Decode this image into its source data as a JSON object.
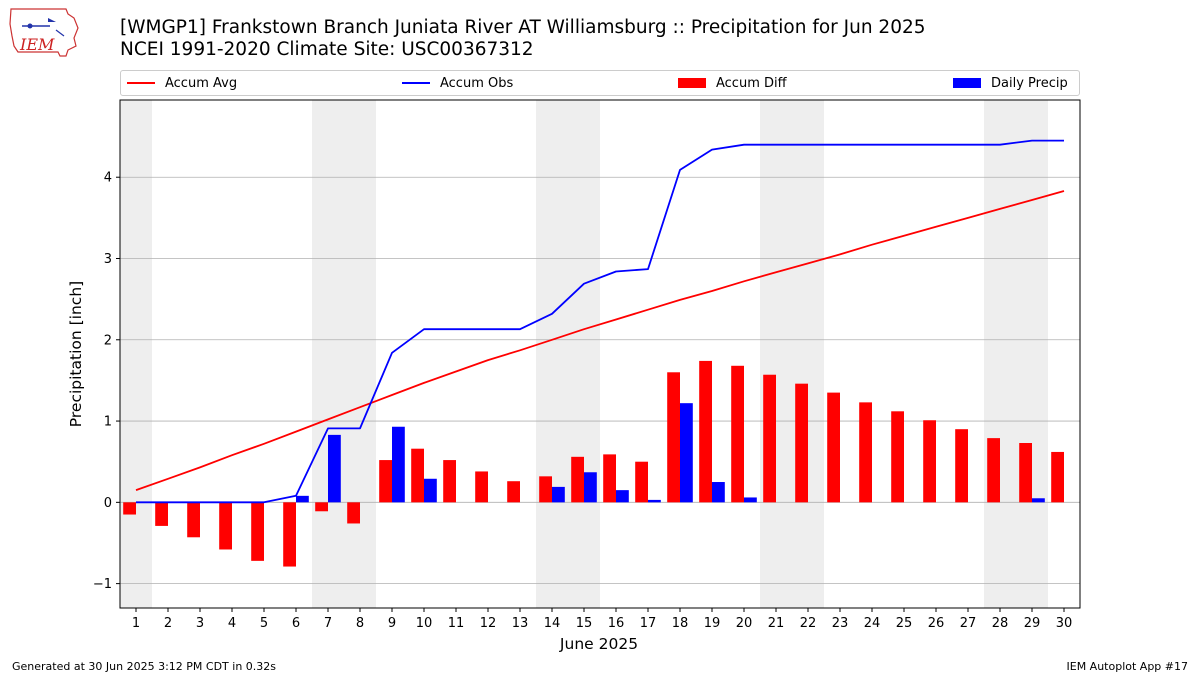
{
  "header": {
    "logo_text": "IEM",
    "title": "[WMGP1] Frankstown Branch Juniata River  AT Williamsburg :: Precipitation for Jun 2025",
    "subtitle": "NCEI 1991-2020 Climate Site: USC00367312"
  },
  "footer": {
    "generated": "Generated at 30 Jun 2025 3:12 PM CDT in 0.32s",
    "app": "IEM Autoplot App #17"
  },
  "colors": {
    "accum_avg": "#ff0000",
    "accum_obs": "#0000ff",
    "accum_diff": "#ff0000",
    "daily_precip": "#0000ff",
    "weekend_shade": "#eeeeee",
    "grid": "#b0b0b0"
  },
  "chart_data": {
    "type": "bar",
    "title": "[WMGP1] Frankstown Branch Juniata River  AT Williamsburg :: Precipitation for Jun 2025",
    "subtitle": "NCEI 1991-2020 Climate Site: USC00367312",
    "xlabel": "June 2025",
    "ylabel": "Precipitation [inch]",
    "xlim": [
      0.5,
      30.5
    ],
    "ylim": [
      -1.3,
      4.95
    ],
    "yticks": [
      -1,
      0,
      1,
      2,
      3,
      4
    ],
    "ytick_labels": [
      "−1",
      "0",
      "1",
      "2",
      "3",
      "4"
    ],
    "grid": "horizontal",
    "legend_position": "top",
    "x": [
      1,
      2,
      3,
      4,
      5,
      6,
      7,
      8,
      9,
      10,
      11,
      12,
      13,
      14,
      15,
      16,
      17,
      18,
      19,
      20,
      21,
      22,
      23,
      24,
      25,
      26,
      27,
      28,
      29,
      30
    ],
    "weekend_days": [
      1,
      7,
      8,
      14,
      15,
      21,
      22,
      28,
      29
    ],
    "series": [
      {
        "name": "Accum Avg",
        "kind": "line",
        "values": [
          0.15,
          0.29,
          0.43,
          0.58,
          0.72,
          0.87,
          1.02,
          1.17,
          1.32,
          1.47,
          1.61,
          1.75,
          1.87,
          2.0,
          2.13,
          2.25,
          2.37,
          2.49,
          2.6,
          2.72,
          2.83,
          2.94,
          3.05,
          3.17,
          3.28,
          3.39,
          3.5,
          3.61,
          3.72,
          3.83
        ]
      },
      {
        "name": "Accum Obs",
        "kind": "line",
        "values": [
          0,
          0,
          0,
          0,
          0,
          0.08,
          0.91,
          0.91,
          1.84,
          2.13,
          2.13,
          2.13,
          2.13,
          2.32,
          2.69,
          2.84,
          2.87,
          4.09,
          4.34,
          4.4,
          4.4,
          4.4,
          4.4,
          4.4,
          4.4,
          4.4,
          4.4,
          4.4,
          4.45,
          4.45
        ]
      },
      {
        "name": "Accum Diff",
        "kind": "bar",
        "values": [
          -0.15,
          -0.29,
          -0.43,
          -0.58,
          -0.72,
          -0.79,
          -0.11,
          -0.26,
          0.52,
          0.66,
          0.52,
          0.38,
          0.26,
          0.32,
          0.56,
          0.59,
          0.5,
          1.6,
          1.74,
          1.68,
          1.57,
          1.46,
          1.35,
          1.23,
          1.12,
          1.01,
          0.9,
          0.79,
          0.73,
          0.62
        ]
      },
      {
        "name": "Daily Precip",
        "kind": "bar",
        "values": [
          0,
          0,
          0,
          0,
          0,
          0.08,
          0.83,
          0,
          0.93,
          0.29,
          0,
          0,
          0,
          0.19,
          0.37,
          0.15,
          0.03,
          1.22,
          0.25,
          0.06,
          0,
          0,
          0,
          0,
          0,
          0,
          0,
          0,
          0.05,
          0
        ]
      }
    ]
  }
}
